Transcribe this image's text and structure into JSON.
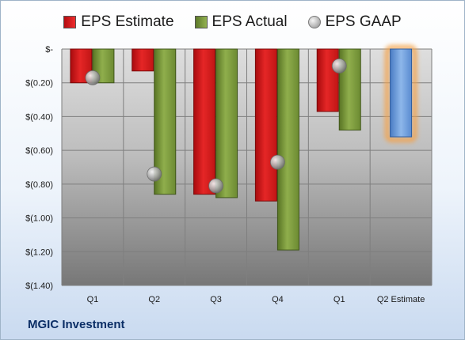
{
  "chart_data": {
    "type": "bar",
    "categories": [
      "Q1",
      "Q2",
      "Q3",
      "Q4",
      "Q1",
      "Q2 Estimate"
    ],
    "series": [
      {
        "name": "EPS Estimate",
        "values": [
          -0.2,
          -0.13,
          -0.86,
          -0.9,
          -0.37,
          null
        ],
        "color": "#d21e1e"
      },
      {
        "name": "EPS Actual",
        "values": [
          -0.2,
          -0.86,
          -0.88,
          -1.19,
          -0.48,
          null
        ],
        "color": "#7d9b3c"
      },
      {
        "name": "EPS GAAP",
        "values": [
          -0.17,
          -0.74,
          -0.81,
          -0.67,
          -0.1,
          null
        ],
        "color": "#a8a8a8"
      }
    ],
    "forward_estimate": {
      "category": "Q2 Estimate",
      "value": -0.52,
      "color": "#5b8fd4",
      "glow": "#f5a34a"
    },
    "ylim": [
      -1.4,
      0
    ],
    "yticks": [
      0,
      -0.2,
      -0.4,
      -0.6,
      -0.8,
      -1.0,
      -1.2,
      -1.4
    ],
    "ytick_labels": [
      "$-",
      "$(0.20)",
      "$(0.40)",
      "$(0.60)",
      "$(0.80)",
      "$(1.00)",
      "$(1.20)",
      "$(1.40)"
    ],
    "grid": true,
    "legend_placement": "top"
  },
  "legend": {
    "estimate": "EPS Estimate",
    "actual": "EPS Actual",
    "gaap": "EPS GAAP"
  },
  "company": "MGIC Investment"
}
